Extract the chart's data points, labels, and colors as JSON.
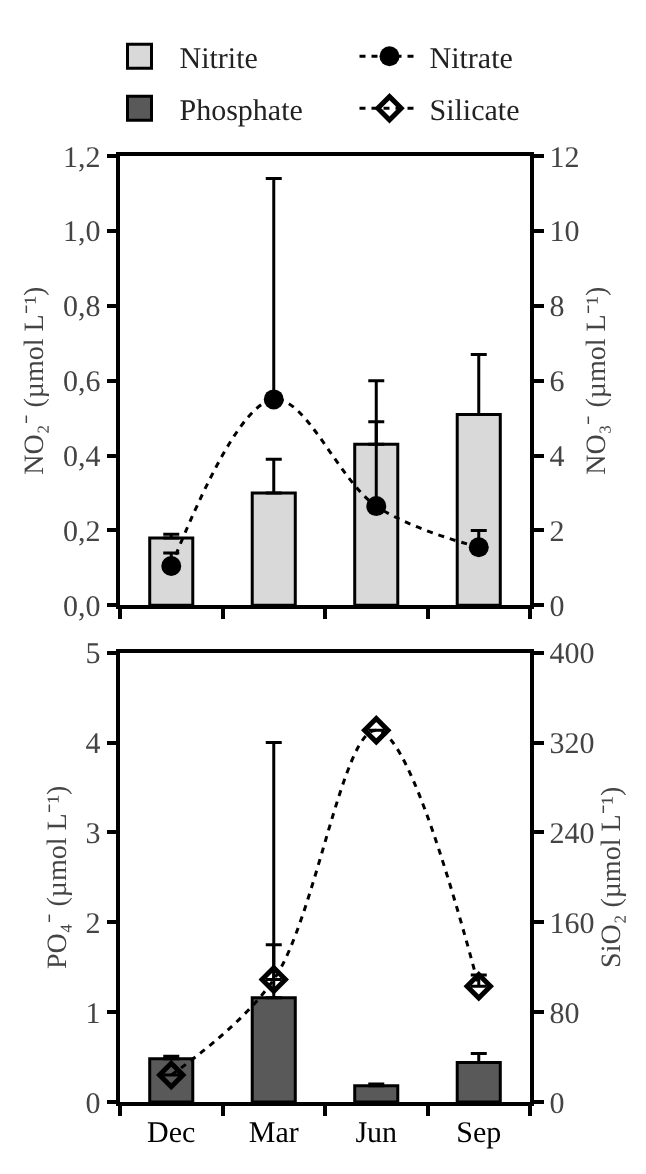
{
  "chart_data": [
    {
      "type": "bar",
      "categories": [
        null,
        null,
        null,
        null
      ],
      "ylabel": "NO₂⁻ (µmol L⁻¹)",
      "y2label": "NO₃⁻ (µmol L⁻¹)",
      "ylim": [
        0,
        1.2
      ],
      "yticks": [
        {
          "value": 0,
          "label": "0,0"
        },
        {
          "value": 0.2,
          "label": "0,2"
        },
        {
          "value": 0.4,
          "label": "0,4"
        },
        {
          "value": 0.6,
          "label": "0,6"
        },
        {
          "value": 0.8,
          "label": "0,8"
        },
        {
          "value": 1.0,
          "label": "1,0"
        },
        {
          "value": 1.2,
          "label": "1,2"
        }
      ],
      "y2lim": [
        0,
        12
      ],
      "y2ticks": [
        0,
        2,
        4,
        6,
        8,
        10,
        12
      ],
      "tick_labels": "y",
      "legend": "top",
      "series": [
        {
          "name": "Nitrite",
          "color": "#d9d9d9",
          "values": [
            0.18,
            0.3,
            0.43,
            0.51
          ],
          "errors": [
            [
              0.18,
              0.19
            ],
            [
              0.3,
              0.39
            ],
            [
              0.43,
              0.6
            ],
            [
              0.51,
              0.67
            ]
          ]
        },
        {
          "name": "Nitrate",
          "type": "line",
          "axis": "y2",
          "color": "#000000",
          "marker": "circle",
          "line_style": "dotted",
          "values": [
            1.05,
            5.5,
            2.65,
            1.55
          ],
          "errors": [
            [
              1.05,
              1.4
            ],
            [
              5.5,
              11.4
            ],
            [
              2.65,
              4.9
            ],
            [
              1.55,
              2.0
            ]
          ]
        }
      ]
    },
    {
      "type": "bar",
      "categories": [
        "Dec",
        "Mar",
        "Jun",
        "Sep"
      ],
      "ylabel": "PO₄⁻ (µmol L⁻¹)",
      "y2label": "SiO₂ (µmol L⁻¹)",
      "ylim": [
        0,
        5
      ],
      "yticks": [
        0,
        1,
        2,
        3,
        4,
        5
      ],
      "y2lim": [
        0,
        400
      ],
      "y2ticks": [
        0,
        80,
        160,
        240,
        320,
        400
      ],
      "legend": "top",
      "series": [
        {
          "name": "Phosphate",
          "color": "#595959",
          "values": [
            0.48,
            1.16,
            0.18,
            0.44
          ],
          "errors": [
            [
              0.48,
              0.51
            ],
            [
              1.16,
              4.0
            ],
            [
              0.18,
              0.2
            ],
            [
              0.44,
              0.54
            ]
          ]
        },
        {
          "name": "Silicate",
          "type": "line",
          "axis": "y2",
          "color": "#000000",
          "marker": "diamond",
          "line_style": "dotted",
          "values": [
            24,
            109,
            331,
            103
          ],
          "errors": [
            null,
            [
              109,
              140
            ],
            null,
            [
              103,
              113
            ]
          ]
        }
      ]
    }
  ]
}
